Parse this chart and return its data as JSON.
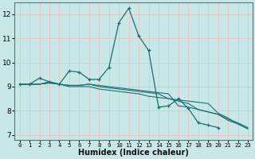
{
  "xlabel": "Humidex (Indice chaleur)",
  "ylabel": "",
  "xlim": [
    -0.5,
    23.5
  ],
  "ylim": [
    6.8,
    12.5
  ],
  "xticks": [
    0,
    1,
    2,
    3,
    4,
    5,
    6,
    7,
    8,
    9,
    10,
    11,
    12,
    13,
    14,
    15,
    16,
    17,
    18,
    19,
    20,
    21,
    22,
    23
  ],
  "yticks": [
    7,
    8,
    9,
    10,
    11,
    12
  ],
  "background_color": "#c8e8e8",
  "grid_color": "#e8c8c8",
  "line_color": "#1a7070",
  "lines": [
    {
      "x": [
        0,
        1,
        2,
        3,
        4,
        5,
        6,
        7,
        8,
        9,
        10,
        11,
        12,
        13,
        14,
        15,
        16,
        17,
        18,
        19,
        20,
        21
      ],
      "y": [
        9.1,
        9.1,
        9.35,
        9.2,
        9.1,
        9.65,
        9.6,
        9.3,
        9.3,
        9.8,
        11.65,
        12.25,
        11.1,
        10.5,
        8.15,
        8.2,
        8.5,
        8.1,
        7.5,
        7.4,
        7.3,
        null
      ],
      "marker": true
    },
    {
      "x": [
        0,
        1,
        2,
        3,
        4,
        5,
        6,
        7,
        8,
        9,
        10,
        11,
        12,
        13,
        14,
        15,
        16,
        17,
        18,
        19,
        20,
        21,
        22,
        23
      ],
      "y": [
        9.1,
        9.1,
        9.1,
        9.15,
        9.1,
        9.0,
        9.0,
        9.0,
        8.9,
        8.85,
        8.8,
        8.75,
        8.7,
        8.6,
        8.55,
        8.5,
        8.45,
        8.4,
        8.35,
        8.3,
        7.9,
        7.7,
        7.45,
        7.25
      ],
      "marker": false
    },
    {
      "x": [
        0,
        1,
        2,
        3,
        4,
        5,
        6,
        7,
        8,
        9,
        10,
        11,
        12,
        13,
        14,
        15,
        16,
        17,
        18,
        19,
        20,
        21,
        22,
        23
      ],
      "y": [
        9.1,
        9.1,
        9.1,
        9.2,
        9.1,
        9.05,
        9.05,
        9.1,
        9.05,
        9.0,
        8.95,
        8.9,
        8.85,
        8.8,
        8.75,
        8.7,
        8.2,
        8.15,
        8.05,
        7.95,
        7.85,
        7.6,
        7.45,
        7.25
      ],
      "marker": false
    },
    {
      "x": [
        0,
        1,
        2,
        3,
        4,
        5,
        6,
        7,
        8,
        9,
        10,
        11,
        12,
        13,
        14,
        15,
        16,
        17,
        18,
        19,
        20,
        21,
        22,
        23
      ],
      "y": [
        9.1,
        9.1,
        9.1,
        9.15,
        9.1,
        9.05,
        9.05,
        9.1,
        9.0,
        8.95,
        8.9,
        8.85,
        8.8,
        8.75,
        8.7,
        8.5,
        8.4,
        8.3,
        8.05,
        7.95,
        7.85,
        7.65,
        7.5,
        7.3
      ],
      "marker": false
    }
  ]
}
